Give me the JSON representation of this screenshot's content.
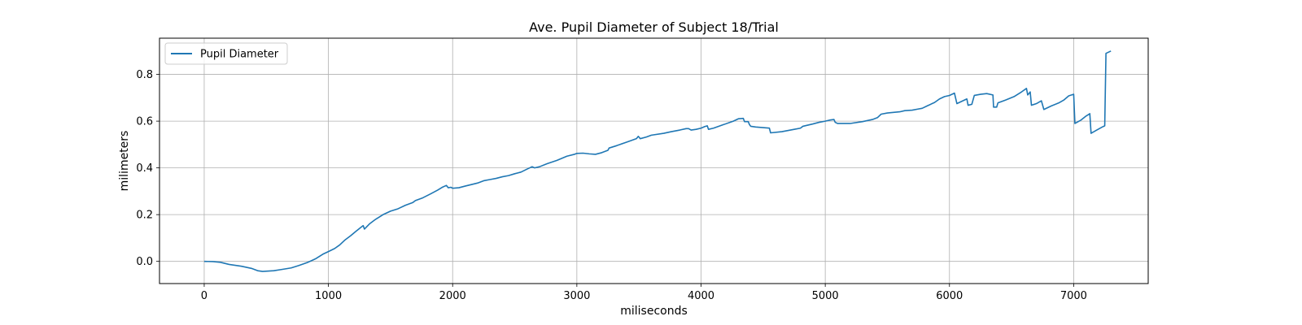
{
  "chart_data": {
    "type": "line",
    "title": "Ave. Pupil Diameter of Subject 18/Trial",
    "xlabel": "miliseconds",
    "ylabel": "milimeters",
    "xlim": [
      -360,
      7600
    ],
    "ylim": [
      -0.095,
      0.955
    ],
    "xticks": [
      0,
      1000,
      2000,
      3000,
      4000,
      5000,
      6000,
      7000
    ],
    "yticks": [
      0.0,
      0.2,
      0.4,
      0.6,
      0.8
    ],
    "ytick_labels": [
      "0.0",
      "0.2",
      "0.4",
      "0.6",
      "0.8"
    ],
    "grid": true,
    "legend": {
      "position": "top-left"
    },
    "colors": {
      "series": "#1f77b4",
      "grid": "#b0b0b0"
    },
    "series": [
      {
        "name": "Pupil Diameter",
        "points": [
          [
            0,
            0.0
          ],
          [
            70,
            -0.001
          ],
          [
            130,
            -0.004
          ],
          [
            200,
            -0.013
          ],
          [
            300,
            -0.021
          ],
          [
            380,
            -0.03
          ],
          [
            430,
            -0.04
          ],
          [
            470,
            -0.043
          ],
          [
            560,
            -0.04
          ],
          [
            620,
            -0.035
          ],
          [
            700,
            -0.028
          ],
          [
            760,
            -0.018
          ],
          [
            830,
            -0.005
          ],
          [
            900,
            0.012
          ],
          [
            960,
            0.032
          ],
          [
            1000,
            0.042
          ],
          [
            1050,
            0.055
          ],
          [
            1090,
            0.07
          ],
          [
            1130,
            0.09
          ],
          [
            1180,
            0.11
          ],
          [
            1220,
            0.128
          ],
          [
            1260,
            0.145
          ],
          [
            1280,
            0.153
          ],
          [
            1290,
            0.138
          ],
          [
            1330,
            0.16
          ],
          [
            1380,
            0.18
          ],
          [
            1440,
            0.2
          ],
          [
            1500,
            0.215
          ],
          [
            1560,
            0.225
          ],
          [
            1620,
            0.24
          ],
          [
            1680,
            0.252
          ],
          [
            1700,
            0.26
          ],
          [
            1760,
            0.272
          ],
          [
            1820,
            0.288
          ],
          [
            1880,
            0.305
          ],
          [
            1920,
            0.318
          ],
          [
            1950,
            0.325
          ],
          [
            1965,
            0.315
          ],
          [
            1985,
            0.317
          ],
          [
            2000,
            0.313
          ],
          [
            2050,
            0.315
          ],
          [
            2100,
            0.322
          ],
          [
            2200,
            0.335
          ],
          [
            2250,
            0.345
          ],
          [
            2300,
            0.35
          ],
          [
            2350,
            0.355
          ],
          [
            2400,
            0.362
          ],
          [
            2450,
            0.367
          ],
          [
            2500,
            0.375
          ],
          [
            2550,
            0.382
          ],
          [
            2600,
            0.395
          ],
          [
            2640,
            0.405
          ],
          [
            2660,
            0.4
          ],
          [
            2700,
            0.405
          ],
          [
            2760,
            0.418
          ],
          [
            2840,
            0.432
          ],
          [
            2920,
            0.45
          ],
          [
            2980,
            0.458
          ],
          [
            3000,
            0.462
          ],
          [
            3050,
            0.463
          ],
          [
            3100,
            0.46
          ],
          [
            3150,
            0.458
          ],
          [
            3200,
            0.465
          ],
          [
            3250,
            0.475
          ],
          [
            3260,
            0.485
          ],
          [
            3320,
            0.495
          ],
          [
            3400,
            0.51
          ],
          [
            3480,
            0.525
          ],
          [
            3495,
            0.535
          ],
          [
            3510,
            0.525
          ],
          [
            3560,
            0.532
          ],
          [
            3600,
            0.54
          ],
          [
            3700,
            0.548
          ],
          [
            3760,
            0.555
          ],
          [
            3830,
            0.562
          ],
          [
            3880,
            0.568
          ],
          [
            3900,
            0.568
          ],
          [
            3920,
            0.562
          ],
          [
            3960,
            0.565
          ],
          [
            4000,
            0.57
          ],
          [
            4030,
            0.577
          ],
          [
            4050,
            0.58
          ],
          [
            4060,
            0.565
          ],
          [
            4100,
            0.57
          ],
          [
            4180,
            0.585
          ],
          [
            4260,
            0.6
          ],
          [
            4300,
            0.61
          ],
          [
            4340,
            0.612
          ],
          [
            4350,
            0.598
          ],
          [
            4380,
            0.598
          ],
          [
            4390,
            0.585
          ],
          [
            4400,
            0.578
          ],
          [
            4440,
            0.575
          ],
          [
            4550,
            0.57
          ],
          [
            4560,
            0.55
          ],
          [
            4650,
            0.555
          ],
          [
            4750,
            0.565
          ],
          [
            4800,
            0.57
          ],
          [
            4820,
            0.578
          ],
          [
            4900,
            0.588
          ],
          [
            4950,
            0.595
          ],
          [
            5000,
            0.6
          ],
          [
            5040,
            0.605
          ],
          [
            5070,
            0.607
          ],
          [
            5080,
            0.595
          ],
          [
            5100,
            0.59
          ],
          [
            5200,
            0.59
          ],
          [
            5300,
            0.598
          ],
          [
            5380,
            0.607
          ],
          [
            5420,
            0.615
          ],
          [
            5450,
            0.63
          ],
          [
            5500,
            0.635
          ],
          [
            5600,
            0.64
          ],
          [
            5640,
            0.645
          ],
          [
            5700,
            0.647
          ],
          [
            5750,
            0.652
          ],
          [
            5780,
            0.655
          ],
          [
            5820,
            0.665
          ],
          [
            5880,
            0.68
          ],
          [
            5920,
            0.695
          ],
          [
            5960,
            0.705
          ],
          [
            6000,
            0.71
          ],
          [
            6040,
            0.72
          ],
          [
            6060,
            0.675
          ],
          [
            6100,
            0.685
          ],
          [
            6140,
            0.695
          ],
          [
            6150,
            0.668
          ],
          [
            6180,
            0.672
          ],
          [
            6200,
            0.71
          ],
          [
            6250,
            0.715
          ],
          [
            6300,
            0.718
          ],
          [
            6350,
            0.712
          ],
          [
            6355,
            0.66
          ],
          [
            6380,
            0.66
          ],
          [
            6390,
            0.678
          ],
          [
            6450,
            0.69
          ],
          [
            6520,
            0.705
          ],
          [
            6580,
            0.725
          ],
          [
            6620,
            0.74
          ],
          [
            6630,
            0.712
          ],
          [
            6650,
            0.725
          ],
          [
            6660,
            0.668
          ],
          [
            6700,
            0.675
          ],
          [
            6740,
            0.687
          ],
          [
            6760,
            0.65
          ],
          [
            6820,
            0.665
          ],
          [
            6880,
            0.678
          ],
          [
            6920,
            0.69
          ],
          [
            6960,
            0.708
          ],
          [
            7000,
            0.715
          ],
          [
            7010,
            0.59
          ],
          [
            7060,
            0.605
          ],
          [
            7100,
            0.622
          ],
          [
            7130,
            0.632
          ],
          [
            7140,
            0.548
          ],
          [
            7180,
            0.56
          ],
          [
            7230,
            0.575
          ],
          [
            7250,
            0.58
          ],
          [
            7260,
            0.89
          ],
          [
            7300,
            0.9
          ]
        ]
      }
    ]
  }
}
